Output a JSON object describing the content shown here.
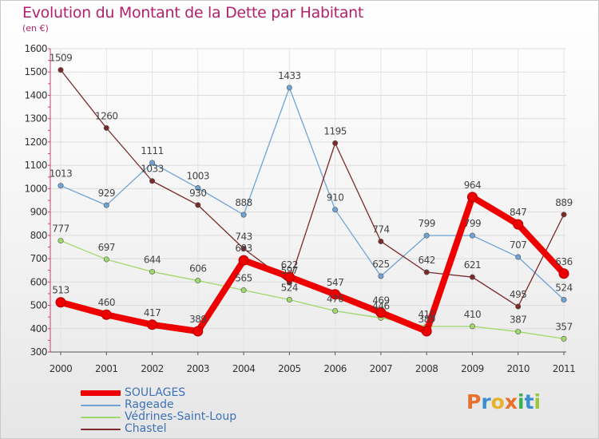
{
  "title": "Evolution du Montant de la Dette par Habitant",
  "subtitle": "(en €)",
  "logo": {
    "letters": [
      "P",
      "r",
      "o",
      "x",
      "i",
      "t",
      "i"
    ],
    "colors": [
      "#e8702a",
      "#3a8fd0",
      "#e8b12a",
      "#e8702a",
      "#3ab04a",
      "#3a8fd0",
      "#9bc53d"
    ]
  },
  "chart_data": {
    "type": "line",
    "title": "Evolution du Montant de la Dette par Habitant",
    "ylabel": "(en €)",
    "categories": [
      "2000",
      "2001",
      "2002",
      "2003",
      "2004",
      "2005",
      "2006",
      "2007",
      "2008",
      "2009",
      "2010",
      "2011"
    ],
    "yticks": [
      300,
      400,
      500,
      600,
      700,
      800,
      900,
      1000,
      1100,
      1200,
      1300,
      1400,
      1500,
      1600
    ],
    "ylim": [
      300,
      1600
    ],
    "grid": true,
    "legend": "bottom-left",
    "series": [
      {
        "name": "Rageade",
        "color": "#6fa3d6",
        "values": [
          1013,
          929,
          1111,
          1003,
          888,
          1433,
          910,
          625,
          799,
          799,
          707,
          524
        ]
      },
      {
        "name": "Védrines-Saint-Loup",
        "color": "#9fd96a",
        "values": [
          777,
          697,
          644,
          606,
          565,
          524,
          476,
          446,
          410,
          410,
          387,
          357
        ]
      },
      {
        "name": "Chastel",
        "color": "#7a2a2a",
        "values": [
          1509,
          1260,
          1033,
          930,
          743,
          597,
          1195,
          774,
          642,
          621,
          495,
          889
        ]
      },
      {
        "name": "SOULAGES",
        "color": "#ee0000",
        "values": [
          513,
          460,
          417,
          389,
          693,
          622,
          547,
          469,
          389,
          964,
          847,
          636
        ]
      }
    ]
  }
}
